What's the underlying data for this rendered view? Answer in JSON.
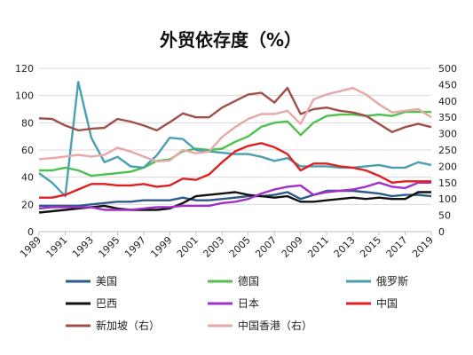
{
  "chart_data": {
    "type": "line",
    "title": "外贸依存度（%）",
    "x": [
      1989,
      1990,
      1991,
      1992,
      1993,
      1994,
      1995,
      1996,
      1997,
      1998,
      1999,
      2000,
      2001,
      2002,
      2003,
      2004,
      2005,
      2006,
      2007,
      2008,
      2009,
      2010,
      2011,
      2012,
      2013,
      2014,
      2015,
      2016,
      2017,
      2018,
      2019
    ],
    "x_tick_labels": [
      "1989",
      "1991",
      "1993",
      "1995",
      "1997",
      "1999",
      "2001",
      "2003",
      "2005",
      "2007",
      "2009",
      "2011",
      "2013",
      "2015",
      "2017",
      "2019"
    ],
    "ylim_left": [
      0,
      120
    ],
    "yticks_left": [
      0,
      20,
      40,
      60,
      80,
      100,
      120
    ],
    "ylim_right": [
      0,
      500
    ],
    "yticks_right": [
      0,
      50,
      100,
      150,
      200,
      250,
      300,
      350,
      400,
      450,
      500
    ],
    "grid": "horizontal",
    "legend_position": "bottom",
    "series": [
      {
        "name": "美国",
        "axis": "left",
        "color": "#2e5a87",
        "values": [
          19,
          19,
          19,
          19,
          20,
          21,
          22,
          22,
          23,
          23,
          23,
          25,
          23,
          23,
          24,
          25,
          26,
          26,
          27,
          29,
          24,
          27,
          30,
          30,
          30,
          29,
          28,
          26,
          27,
          27,
          26
        ]
      },
      {
        "name": "德国",
        "axis": "left",
        "color": "#4cc14c",
        "values": [
          45,
          45,
          47,
          45,
          41,
          42,
          43,
          44,
          47,
          52,
          53,
          59,
          61,
          60,
          61,
          66,
          70,
          77,
          80,
          81,
          71,
          80,
          85,
          86,
          86,
          85,
          86,
          85,
          88,
          88,
          88
        ]
      },
      {
        "name": "俄罗斯",
        "axis": "left",
        "color": "#4a9fb0",
        "values": [
          43,
          36,
          26,
          110,
          69,
          51,
          55,
          48,
          47,
          56,
          69,
          68,
          60,
          59,
          58,
          57,
          57,
          55,
          52,
          54,
          48,
          48,
          48,
          47,
          47,
          48,
          49,
          47,
          47,
          51,
          49
        ]
      },
      {
        "name": "巴西",
        "axis": "left",
        "color": "#111111",
        "values": [
          14,
          15,
          16,
          17,
          18,
          19,
          17,
          16,
          16,
          16,
          17,
          21,
          26,
          27,
          28,
          29,
          27,
          26,
          25,
          26,
          22,
          22,
          23,
          24,
          25,
          24,
          25,
          24,
          24,
          29,
          29
        ]
      },
      {
        "name": "日本",
        "axis": "left",
        "color": "#a030c8",
        "values": [
          17,
          18,
          18,
          18,
          18,
          16,
          16,
          16,
          17,
          18,
          18,
          19,
          19,
          19,
          21,
          22,
          24,
          28,
          31,
          33,
          34,
          27,
          29,
          30,
          31,
          33,
          36,
          33,
          32,
          36,
          36
        ]
      },
      {
        "name": "中国",
        "axis": "left",
        "color": "#e02020",
        "values": [
          25,
          25,
          27,
          31,
          35,
          35,
          34,
          34,
          35,
          33,
          34,
          39,
          38,
          42,
          51,
          59,
          63,
          65,
          62,
          57,
          45,
          50,
          50,
          48,
          47,
          45,
          41,
          36,
          37,
          37,
          37
        ]
      },
      {
        "name": "新加坡（右）",
        "axis": "right",
        "color": "#a05048",
        "values": [
          347,
          345,
          325,
          310,
          315,
          318,
          345,
          337,
          325,
          310,
          335,
          362,
          350,
          350,
          380,
          400,
          420,
          425,
          395,
          440,
          360,
          375,
          380,
          370,
          365,
          355,
          330,
          305,
          320,
          330,
          320
        ]
      },
      {
        "name": "中国香港（右）",
        "axis": "right",
        "color": "#e6a8a8",
        "values": [
          222,
          225,
          230,
          235,
          230,
          235,
          257,
          245,
          230,
          215,
          218,
          250,
          240,
          245,
          290,
          320,
          345,
          360,
          360,
          370,
          330,
          405,
          420,
          430,
          440,
          420,
          390,
          365,
          370,
          375,
          350
        ]
      }
    ]
  }
}
